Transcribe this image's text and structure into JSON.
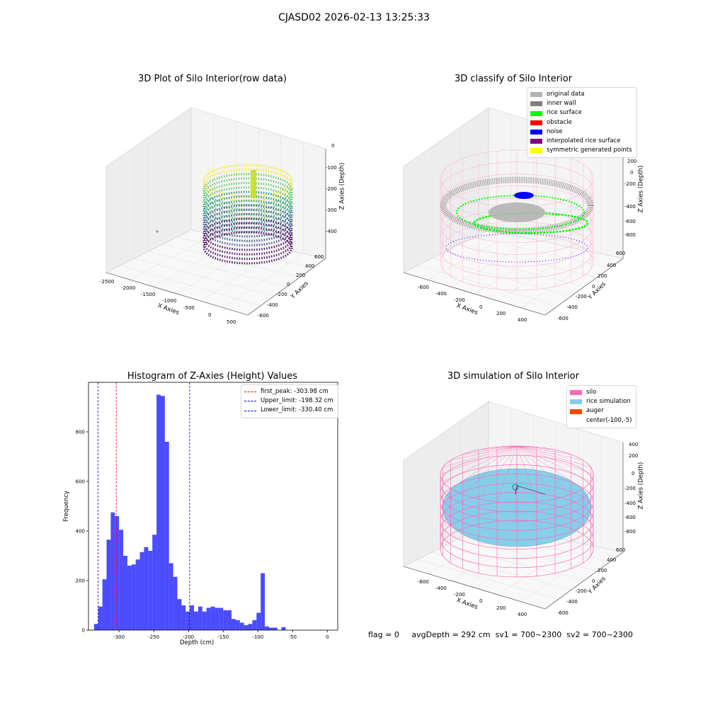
{
  "figure": {
    "suptitle": "CJASD02 2026-02-13 13:25:33",
    "footer": {
      "flag": "flag = 0",
      "avg_depth": "avgDepth = 292 cm",
      "sv1": "sv1 = 700~2300",
      "sv2": "sv2 = 700~2300"
    }
  },
  "panel1": {
    "title": "3D Plot of Silo Interior(row data)",
    "xlabel": "X Axies",
    "ylabel": "Y Axies",
    "zlabel": "Z Axies (Depth)",
    "xticks": [
      "-2500",
      "-2000",
      "-1500",
      "-1000",
      "-500",
      "0",
      "500"
    ],
    "yticks": [
      "-600",
      "-400",
      "-200",
      "0",
      "200",
      "400",
      "600"
    ],
    "zticks": [
      "0",
      "-100",
      "-200",
      "-300",
      "-400"
    ],
    "colormap": "viridis"
  },
  "panel2": {
    "title": "3D classify of Silo Interior",
    "xlabel": "X Axies",
    "ylabel": "Y Axies",
    "zlabel": "Z Axies (Depth)",
    "xticks": [
      "-600",
      "-400",
      "-200",
      "0",
      "200",
      "400"
    ],
    "yticks": [
      "-600",
      "-400",
      "-200",
      "0",
      "200",
      "400",
      "600"
    ],
    "zticks": [
      "200",
      "0",
      "-200",
      "-400",
      "-600",
      "-800"
    ],
    "legend": [
      {
        "label": "original data",
        "color": "#b4b4b4"
      },
      {
        "label": "inner wall",
        "color": "#808080"
      },
      {
        "label": "rice surface",
        "color": "#00ff00"
      },
      {
        "label": "obstacle",
        "color": "#ff0000"
      },
      {
        "label": "noise",
        "color": "#0000ff"
      },
      {
        "label": "interpolated rice surface",
        "color": "#800080"
      },
      {
        "label": "symmetric generated points",
        "color": "#ffff00"
      }
    ]
  },
  "panel4": {
    "title": "3D simulation of Silo Interior",
    "xlabel": "X Axies",
    "ylabel": "Y Axies",
    "zlabel": "Z Axies (Depth)",
    "xticks": [
      "-600",
      "-400",
      "-200",
      "0",
      "200",
      "400"
    ],
    "yticks": [
      "-600",
      "-400",
      "-200",
      "0",
      "200",
      "400",
      "600"
    ],
    "zticks": [
      "400",
      "200",
      "0",
      "-200",
      "-400",
      "-600",
      "-800"
    ],
    "legend": [
      {
        "label": "silo",
        "color": "#ff69b4"
      },
      {
        "label": "rice simulation",
        "color": "#87ceeb"
      },
      {
        "label": "auger",
        "color": "#ff4500"
      },
      {
        "label": "center(-100,-5)",
        "color": ""
      }
    ]
  },
  "chart_data": [
    {
      "type": "bar",
      "title": "Histogram of Z-Axies (Height) Values",
      "xlabel": "Depth (cm)",
      "ylabel": "Frequency",
      "color": "#0000ff",
      "bin_edges_start": -336,
      "bin_width": 6,
      "values": [
        25,
        95,
        205,
        365,
        475,
        460,
        405,
        300,
        260,
        265,
        285,
        315,
        335,
        320,
        385,
        950,
        945,
        760,
        270,
        215,
        125,
        100,
        75,
        100,
        75,
        95,
        75,
        90,
        95,
        90,
        90,
        80,
        80,
        45,
        40,
        30,
        20,
        25,
        40,
        70,
        230,
        15,
        10,
        10,
        0,
        12
      ],
      "xlim": [
        -344,
        15
      ],
      "ylim": [
        0,
        1000
      ],
      "xticks": [
        -300,
        -250,
        -200,
        -150,
        -100,
        -50,
        0
      ],
      "yticks": [
        0,
        200,
        400,
        600,
        800
      ],
      "grid": false,
      "legend_position": "top-right",
      "vlines": [
        {
          "name": "first_peak: -303.98 cm",
          "x": -303.98,
          "color": "#ff0000"
        },
        {
          "name": "Upper_limit: -198.32 cm",
          "x": -198.32,
          "color": "#0000cc"
        },
        {
          "name": "Lower_limit: -330.40 cm",
          "x": -330.4,
          "color": "#0000cc"
        }
      ]
    }
  ]
}
